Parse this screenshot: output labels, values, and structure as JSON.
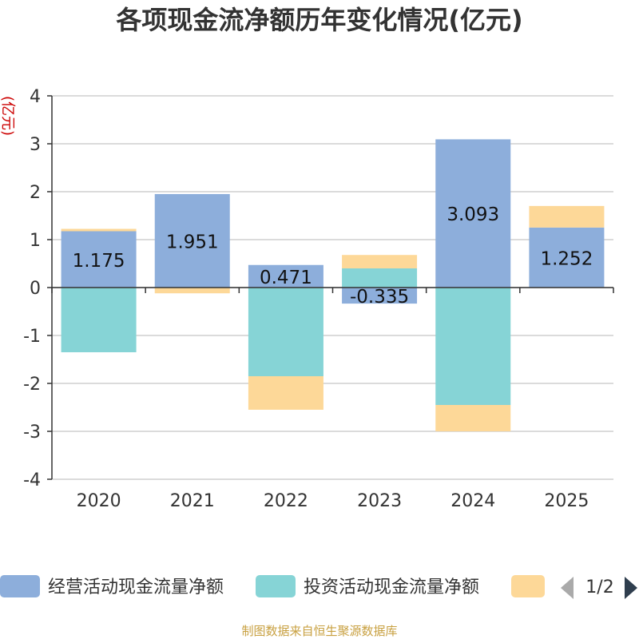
{
  "chart_data": {
    "type": "bar",
    "stacked": true,
    "title": "各项现金流净额历年变化情况(亿元)",
    "ylabel": "(亿元)",
    "ylim": [
      -4,
      4
    ],
    "yticks": [
      4,
      3,
      2,
      1,
      0,
      -1,
      -2,
      -3,
      -4
    ],
    "categories": [
      "2020",
      "2021",
      "2022",
      "2023",
      "2024",
      "2025"
    ],
    "series": [
      {
        "name": "经营活动现金流量净额",
        "color": "#8daedb",
        "values": [
          1.175,
          1.951,
          0.471,
          -0.335,
          3.093,
          1.252
        ],
        "labels": [
          "1.175",
          "1.951",
          "0.471",
          "-0.335",
          "3.093",
          "1.252"
        ]
      },
      {
        "name": "投资活动现金流量净额",
        "color": "#86d4d6",
        "values": [
          -1.35,
          0.0,
          -1.85,
          0.4,
          -2.45,
          0.0
        ]
      },
      {
        "name": "",
        "color": "#fdd898",
        "values": [
          0.05,
          -0.12,
          -0.7,
          0.28,
          -0.55,
          0.45
        ]
      }
    ],
    "grid": true,
    "legend": "bottom",
    "legend_page": "1/2"
  },
  "footer": {
    "source": "制图数据来自恒生聚源数据库"
  }
}
